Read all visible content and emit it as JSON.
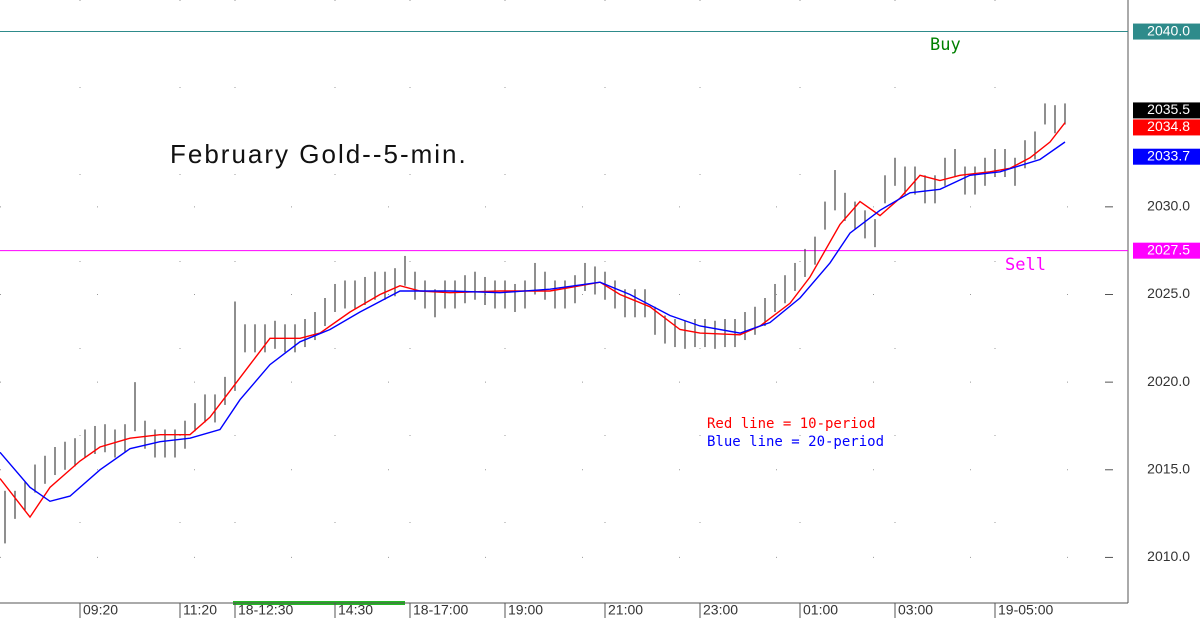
{
  "chart_data": {
    "type": "range-bar",
    "title": "February Gold--5-min.",
    "annotations": [
      "Red line = 10-period",
      "Blue line = 20-period"
    ],
    "bar_color": "#444444",
    "x": [
      1,
      3,
      5,
      7,
      9,
      11,
      13,
      15,
      17,
      19,
      21,
      23,
      25,
      27,
      29,
      31,
      33,
      35,
      37,
      39,
      41,
      43,
      45,
      47,
      49,
      51,
      53,
      55,
      57,
      59,
      61,
      63,
      65,
      67,
      69,
      71,
      73,
      75,
      77,
      79,
      81,
      83,
      85,
      87,
      89,
      91,
      93,
      95,
      97,
      99,
      101,
      103,
      105,
      107,
      109,
      111,
      113,
      115,
      117,
      119,
      121,
      123,
      125,
      127,
      129,
      131,
      133,
      135,
      137,
      139,
      141,
      143,
      145,
      147,
      149,
      151,
      153,
      155,
      157,
      159,
      161,
      163,
      165,
      167,
      169,
      171,
      173,
      175,
      177,
      179,
      181,
      183,
      185,
      187,
      189,
      191,
      193,
      195,
      197,
      199,
      201,
      203,
      205,
      207,
      209,
      211,
      213
    ],
    "high": [
      2013.8,
      2013.8,
      2014.3,
      2015.3,
      2015.8,
      2016.3,
      2016.6,
      2016.8,
      2017.3,
      2017.5,
      2017.6,
      2017.3,
      2017.6,
      2020,
      2017.8,
      2017.3,
      2017.3,
      2017.3,
      2017.8,
      2018.8,
      2019.3,
      2019.3,
      2020.3,
      2024.6,
      2023.3,
      2023.3,
      2023.3,
      2023.5,
      2023.3,
      2023.3,
      2023.6,
      2024,
      2024.8,
      2025.6,
      2025.8,
      2025.8,
      2026,
      2026.3,
      2026.3,
      2026.5,
      2027.2,
      2026.3,
      2025.8,
      2025.3,
      2025.8,
      2025.8,
      2026.1,
      2026.3,
      2026,
      2025.8,
      2025.8,
      2025.6,
      2025.8,
      2026.8,
      2026.3,
      2025.8,
      2025.8,
      2026.1,
      2026.8,
      2026.6,
      2026.3,
      2025.8,
      2025.3,
      2025.3,
      2025.3,
      2024.3,
      2023.8,
      2023.6,
      2023.5,
      2023.6,
      2023.6,
      2023.5,
      2023.6,
      2023.6,
      2024,
      2024.3,
      2024.8,
      2025.6,
      2026.1,
      2026.8,
      2027.6,
      2028.3,
      2030.3,
      2032.1,
      2030.8,
      2030.3,
      2029.8,
      2029.3,
      2031.8,
      2032.8,
      2032.3,
      2032.3,
      2031.8,
      2031.8,
      2032.8,
      2033.3,
      2032.3,
      2032.3,
      2032.8,
      2033.3,
      2033.3,
      2032.8,
      2033.8,
      2034.3,
      2035.9,
      2035.8,
      2035.9
    ],
    "low": [
      2010.8,
      2012.2,
      2012.7,
      2013.7,
      2014.2,
      2014.7,
      2015,
      2015.2,
      2015.7,
      2015.9,
      2016,
      2015.7,
      2016,
      2017.2,
      2016.2,
      2015.7,
      2015.7,
      2015.7,
      2016.2,
      2017.2,
      2017.7,
      2017.7,
      2018.7,
      2019.5,
      2021.7,
      2021.7,
      2021.7,
      2021.9,
      2021.7,
      2021.7,
      2022,
      2022.4,
      2023.2,
      2024,
      2024.2,
      2024.2,
      2024.4,
      2024.7,
      2024.7,
      2024.9,
      2025.5,
      2024.7,
      2024.2,
      2023.7,
      2024.2,
      2024.2,
      2024.5,
      2024.7,
      2024.4,
      2024.2,
      2024.2,
      2024,
      2024.2,
      2025,
      2024.7,
      2024.2,
      2024.2,
      2024.5,
      2025.2,
      2025,
      2024.7,
      2024.2,
      2023.7,
      2023.7,
      2023.7,
      2022.7,
      2022.2,
      2022,
      2021.9,
      2022,
      2022,
      2021.9,
      2022,
      2022,
      2022.4,
      2022.7,
      2023.2,
      2024,
      2024.5,
      2025.2,
      2026,
      2026.7,
      2028.7,
      2029.8,
      2029.2,
      2028.7,
      2028.2,
      2027.7,
      2030.2,
      2031.2,
      2030.7,
      2030.7,
      2030.2,
      2030.2,
      2031.2,
      2031.7,
      2030.7,
      2030.7,
      2031.2,
      2031.7,
      2031.7,
      2031.2,
      2032.2,
      2032.7,
      2034.7,
      2034.2,
      2034.7
    ],
    "series": [
      {
        "color": "#ff0000",
        "x": [
          0,
          6,
          10,
          16,
          20,
          26,
          32,
          38,
          42,
          46,
          50,
          54,
          60,
          64,
          70,
          76,
          80,
          84,
          90,
          100,
          110,
          120,
          124,
          130,
          136,
          140,
          148,
          152,
          158,
          162,
          168,
          172,
          176,
          180,
          184,
          188,
          192,
          198,
          202,
          206,
          210,
          213
        ],
        "values": [
          2014.5,
          2012.3,
          2014,
          2015.5,
          2016.3,
          2016.8,
          2017,
          2017,
          2018,
          2019.5,
          2021,
          2022.5,
          2022.5,
          2022.8,
          2024,
          2025,
          2025.5,
          2025.2,
          2025.1,
          2025.2,
          2025.2,
          2025.7,
          2025,
          2024.3,
          2023,
          2022.8,
          2022.7,
          2023.2,
          2024.5,
          2026,
          2029,
          2030.3,
          2029.5,
          2030.5,
          2031.8,
          2031.5,
          2031.8,
          2032,
          2032.2,
          2032.8,
          2033.7,
          2034.8
        ]
      },
      {
        "color": "#0000ff",
        "x": [
          0,
          6,
          10,
          14,
          20,
          26,
          32,
          38,
          44,
          48,
          54,
          60,
          66,
          72,
          80,
          90,
          100,
          110,
          120,
          126,
          134,
          140,
          148,
          154,
          160,
          166,
          170,
          176,
          182,
          188,
          194,
          200,
          208,
          213
        ],
        "values": [
          2016,
          2014,
          2013.2,
          2013.5,
          2015,
          2016.2,
          2016.6,
          2016.8,
          2017.3,
          2019,
          2021,
          2022.3,
          2023,
          2024,
          2025.2,
          2025.2,
          2025.1,
          2025.3,
          2025.7,
          2025,
          2023.8,
          2023.2,
          2022.8,
          2023.4,
          2024.8,
          2026.8,
          2028.5,
          2029.8,
          2030.8,
          2031,
          2031.8,
          2032,
          2032.7,
          2033.7
        ]
      }
    ],
    "levels": [
      {
        "value": 2040,
        "label": "2040.0",
        "text": "Buy",
        "color": "#2e8b8b",
        "text_color": "#008000"
      },
      {
        "value": 2027.5,
        "label": "2027.5",
        "text": "Sell",
        "color": "#ff00ff",
        "text_color": "#ff00ff"
      }
    ],
    "last_values": [
      {
        "value": 2035.5,
        "label": "2035.5",
        "color": "#000000"
      },
      {
        "value": 2034.8,
        "label": "2034.8",
        "color": "#ff0000"
      },
      {
        "value": 2033.7,
        "label": "2033.7",
        "color": "#0000ff"
      }
    ],
    "xlim": [
      0,
      221
    ],
    "ylim": [
      2007.4,
      2041.8
    ],
    "xticks": [
      {
        "value": 16,
        "label": "09:20"
      },
      {
        "value": 36,
        "label": "11:20"
      },
      {
        "value": 47,
        "label": "18-12:30"
      },
      {
        "value": 67,
        "label": "14:30"
      },
      {
        "value": 82,
        "label": "18-17:00"
      },
      {
        "value": 101,
        "label": "19:00"
      },
      {
        "value": 121,
        "label": "21:00"
      },
      {
        "value": 140,
        "label": "23:00"
      },
      {
        "value": 160,
        "label": "01:00"
      },
      {
        "value": 179,
        "label": "03:00"
      },
      {
        "value": 199,
        "label": "19-05:00"
      }
    ],
    "yticks": [
      {
        "value": 2010,
        "label": "2010.0"
      },
      {
        "value": 2015,
        "label": "2015.0"
      },
      {
        "value": 2020,
        "label": "2020.0"
      },
      {
        "value": 2025,
        "label": "2025.0"
      },
      {
        "value": 2030,
        "label": "2030.0"
      }
    ],
    "grid": true
  }
}
